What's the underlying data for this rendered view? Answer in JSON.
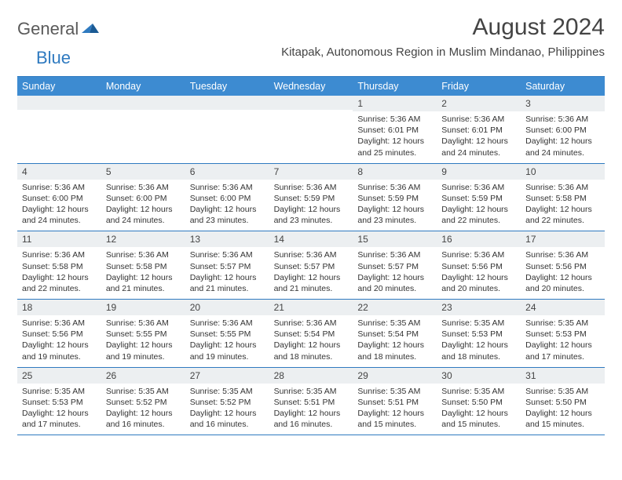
{
  "logo": {
    "text1": "General",
    "text2": "Blue"
  },
  "title": "August 2024",
  "location": "Kitapak, Autonomous Region in Muslim Mindanao, Philippines",
  "colors": {
    "header_bg": "#3d8bd1",
    "header_text": "#ffffff",
    "date_bg": "#eceff1",
    "border": "#2f7ac0",
    "text": "#333333",
    "logo_gray": "#5a5a5a",
    "logo_blue": "#2f7ac0"
  },
  "day_headers": [
    "Sunday",
    "Monday",
    "Tuesday",
    "Wednesday",
    "Thursday",
    "Friday",
    "Saturday"
  ],
  "weeks": [
    [
      {
        "date": "",
        "sunrise": "",
        "sunset": "",
        "daylight1": "",
        "daylight2": ""
      },
      {
        "date": "",
        "sunrise": "",
        "sunset": "",
        "daylight1": "",
        "daylight2": ""
      },
      {
        "date": "",
        "sunrise": "",
        "sunset": "",
        "daylight1": "",
        "daylight2": ""
      },
      {
        "date": "",
        "sunrise": "",
        "sunset": "",
        "daylight1": "",
        "daylight2": ""
      },
      {
        "date": "1",
        "sunrise": "Sunrise: 5:36 AM",
        "sunset": "Sunset: 6:01 PM",
        "daylight1": "Daylight: 12 hours",
        "daylight2": "and 25 minutes."
      },
      {
        "date": "2",
        "sunrise": "Sunrise: 5:36 AM",
        "sunset": "Sunset: 6:01 PM",
        "daylight1": "Daylight: 12 hours",
        "daylight2": "and 24 minutes."
      },
      {
        "date": "3",
        "sunrise": "Sunrise: 5:36 AM",
        "sunset": "Sunset: 6:00 PM",
        "daylight1": "Daylight: 12 hours",
        "daylight2": "and 24 minutes."
      }
    ],
    [
      {
        "date": "4",
        "sunrise": "Sunrise: 5:36 AM",
        "sunset": "Sunset: 6:00 PM",
        "daylight1": "Daylight: 12 hours",
        "daylight2": "and 24 minutes."
      },
      {
        "date": "5",
        "sunrise": "Sunrise: 5:36 AM",
        "sunset": "Sunset: 6:00 PM",
        "daylight1": "Daylight: 12 hours",
        "daylight2": "and 24 minutes."
      },
      {
        "date": "6",
        "sunrise": "Sunrise: 5:36 AM",
        "sunset": "Sunset: 6:00 PM",
        "daylight1": "Daylight: 12 hours",
        "daylight2": "and 23 minutes."
      },
      {
        "date": "7",
        "sunrise": "Sunrise: 5:36 AM",
        "sunset": "Sunset: 5:59 PM",
        "daylight1": "Daylight: 12 hours",
        "daylight2": "and 23 minutes."
      },
      {
        "date": "8",
        "sunrise": "Sunrise: 5:36 AM",
        "sunset": "Sunset: 5:59 PM",
        "daylight1": "Daylight: 12 hours",
        "daylight2": "and 23 minutes."
      },
      {
        "date": "9",
        "sunrise": "Sunrise: 5:36 AM",
        "sunset": "Sunset: 5:59 PM",
        "daylight1": "Daylight: 12 hours",
        "daylight2": "and 22 minutes."
      },
      {
        "date": "10",
        "sunrise": "Sunrise: 5:36 AM",
        "sunset": "Sunset: 5:58 PM",
        "daylight1": "Daylight: 12 hours",
        "daylight2": "and 22 minutes."
      }
    ],
    [
      {
        "date": "11",
        "sunrise": "Sunrise: 5:36 AM",
        "sunset": "Sunset: 5:58 PM",
        "daylight1": "Daylight: 12 hours",
        "daylight2": "and 22 minutes."
      },
      {
        "date": "12",
        "sunrise": "Sunrise: 5:36 AM",
        "sunset": "Sunset: 5:58 PM",
        "daylight1": "Daylight: 12 hours",
        "daylight2": "and 21 minutes."
      },
      {
        "date": "13",
        "sunrise": "Sunrise: 5:36 AM",
        "sunset": "Sunset: 5:57 PM",
        "daylight1": "Daylight: 12 hours",
        "daylight2": "and 21 minutes."
      },
      {
        "date": "14",
        "sunrise": "Sunrise: 5:36 AM",
        "sunset": "Sunset: 5:57 PM",
        "daylight1": "Daylight: 12 hours",
        "daylight2": "and 21 minutes."
      },
      {
        "date": "15",
        "sunrise": "Sunrise: 5:36 AM",
        "sunset": "Sunset: 5:57 PM",
        "daylight1": "Daylight: 12 hours",
        "daylight2": "and 20 minutes."
      },
      {
        "date": "16",
        "sunrise": "Sunrise: 5:36 AM",
        "sunset": "Sunset: 5:56 PM",
        "daylight1": "Daylight: 12 hours",
        "daylight2": "and 20 minutes."
      },
      {
        "date": "17",
        "sunrise": "Sunrise: 5:36 AM",
        "sunset": "Sunset: 5:56 PM",
        "daylight1": "Daylight: 12 hours",
        "daylight2": "and 20 minutes."
      }
    ],
    [
      {
        "date": "18",
        "sunrise": "Sunrise: 5:36 AM",
        "sunset": "Sunset: 5:56 PM",
        "daylight1": "Daylight: 12 hours",
        "daylight2": "and 19 minutes."
      },
      {
        "date": "19",
        "sunrise": "Sunrise: 5:36 AM",
        "sunset": "Sunset: 5:55 PM",
        "daylight1": "Daylight: 12 hours",
        "daylight2": "and 19 minutes."
      },
      {
        "date": "20",
        "sunrise": "Sunrise: 5:36 AM",
        "sunset": "Sunset: 5:55 PM",
        "daylight1": "Daylight: 12 hours",
        "daylight2": "and 19 minutes."
      },
      {
        "date": "21",
        "sunrise": "Sunrise: 5:36 AM",
        "sunset": "Sunset: 5:54 PM",
        "daylight1": "Daylight: 12 hours",
        "daylight2": "and 18 minutes."
      },
      {
        "date": "22",
        "sunrise": "Sunrise: 5:35 AM",
        "sunset": "Sunset: 5:54 PM",
        "daylight1": "Daylight: 12 hours",
        "daylight2": "and 18 minutes."
      },
      {
        "date": "23",
        "sunrise": "Sunrise: 5:35 AM",
        "sunset": "Sunset: 5:53 PM",
        "daylight1": "Daylight: 12 hours",
        "daylight2": "and 18 minutes."
      },
      {
        "date": "24",
        "sunrise": "Sunrise: 5:35 AM",
        "sunset": "Sunset: 5:53 PM",
        "daylight1": "Daylight: 12 hours",
        "daylight2": "and 17 minutes."
      }
    ],
    [
      {
        "date": "25",
        "sunrise": "Sunrise: 5:35 AM",
        "sunset": "Sunset: 5:53 PM",
        "daylight1": "Daylight: 12 hours",
        "daylight2": "and 17 minutes."
      },
      {
        "date": "26",
        "sunrise": "Sunrise: 5:35 AM",
        "sunset": "Sunset: 5:52 PM",
        "daylight1": "Daylight: 12 hours",
        "daylight2": "and 16 minutes."
      },
      {
        "date": "27",
        "sunrise": "Sunrise: 5:35 AM",
        "sunset": "Sunset: 5:52 PM",
        "daylight1": "Daylight: 12 hours",
        "daylight2": "and 16 minutes."
      },
      {
        "date": "28",
        "sunrise": "Sunrise: 5:35 AM",
        "sunset": "Sunset: 5:51 PM",
        "daylight1": "Daylight: 12 hours",
        "daylight2": "and 16 minutes."
      },
      {
        "date": "29",
        "sunrise": "Sunrise: 5:35 AM",
        "sunset": "Sunset: 5:51 PM",
        "daylight1": "Daylight: 12 hours",
        "daylight2": "and 15 minutes."
      },
      {
        "date": "30",
        "sunrise": "Sunrise: 5:35 AM",
        "sunset": "Sunset: 5:50 PM",
        "daylight1": "Daylight: 12 hours",
        "daylight2": "and 15 minutes."
      },
      {
        "date": "31",
        "sunrise": "Sunrise: 5:35 AM",
        "sunset": "Sunset: 5:50 PM",
        "daylight1": "Daylight: 12 hours",
        "daylight2": "and 15 minutes."
      }
    ]
  ]
}
